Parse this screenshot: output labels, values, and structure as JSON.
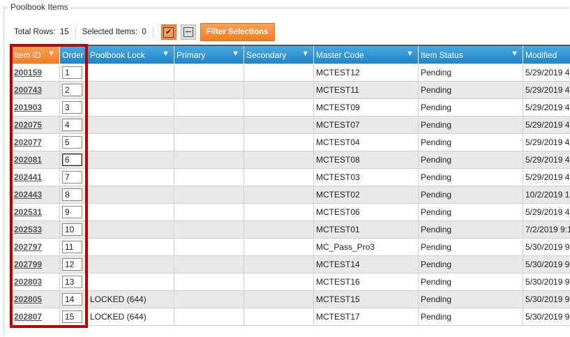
{
  "group_title": "Poolbook Items",
  "toolbar": {
    "total_rows_label": "Total Rows:",
    "total_rows": "15",
    "selected_label": "Selected Items:",
    "selected": "0",
    "check_all_icon": "checkbox-checked-icon",
    "deselect_icon": "minus-box-icon",
    "filter_label": "Filter Selections"
  },
  "accent": "#f47c20",
  "header_color": "#1f85c8",
  "highlight_color": "#c00000",
  "columns": [
    "Item ID",
    "Order",
    "Poolbook Lock",
    "Primary",
    "Secondary",
    "Master Code",
    "Item Status",
    "Modified"
  ],
  "rows": [
    {
      "id": "200159",
      "order": "1",
      "lock": "",
      "primary": "",
      "secondary": "",
      "code": "MCTEST12",
      "status": "Pending",
      "modified": "5/29/2019 4"
    },
    {
      "id": "200743",
      "order": "2",
      "lock": "",
      "primary": "",
      "secondary": "",
      "code": "MCTEST11",
      "status": "Pending",
      "modified": "5/29/2019 4"
    },
    {
      "id": "201903",
      "order": "3",
      "lock": "",
      "primary": "",
      "secondary": "",
      "code": "MCTEST09",
      "status": "Pending",
      "modified": "5/29/2019 4"
    },
    {
      "id": "202075",
      "order": "4",
      "lock": "",
      "primary": "",
      "secondary": "",
      "code": "MCTEST07",
      "status": "Pending",
      "modified": "5/29/2019 4"
    },
    {
      "id": "202077",
      "order": "5",
      "lock": "",
      "primary": "",
      "secondary": "",
      "code": "MCTEST04",
      "status": "Pending",
      "modified": "5/29/2019 4"
    },
    {
      "id": "202081",
      "order": "6",
      "lock": "",
      "primary": "",
      "secondary": "",
      "code": "MCTEST08",
      "status": "Pending",
      "modified": "5/29/2019 4"
    },
    {
      "id": "202441",
      "order": "7",
      "lock": "",
      "primary": "",
      "secondary": "",
      "code": "MCTEST03",
      "status": "Pending",
      "modified": "5/29/2019 4"
    },
    {
      "id": "202443",
      "order": "8",
      "lock": "",
      "primary": "",
      "secondary": "",
      "code": "MCTEST02",
      "status": "Pending",
      "modified": "10/2/2019 1"
    },
    {
      "id": "202531",
      "order": "9",
      "lock": "",
      "primary": "",
      "secondary": "",
      "code": "MCTEST06",
      "status": "Pending",
      "modified": "5/29/2019 4"
    },
    {
      "id": "202533",
      "order": "10",
      "lock": "",
      "primary": "",
      "secondary": "",
      "code": "MCTEST01",
      "status": "Pending",
      "modified": "7/2/2019 9:1"
    },
    {
      "id": "202797",
      "order": "11",
      "lock": "",
      "primary": "",
      "secondary": "",
      "code": "MC_Pass_Pro3",
      "status": "Pending",
      "modified": "5/30/2019 9"
    },
    {
      "id": "202799",
      "order": "12",
      "lock": "",
      "primary": "",
      "secondary": "",
      "code": "MCTEST14",
      "status": "Pending",
      "modified": "5/30/2019 9"
    },
    {
      "id": "202803",
      "order": "13",
      "lock": "",
      "primary": "",
      "secondary": "",
      "code": "MCTEST16",
      "status": "Pending",
      "modified": "5/30/2019 9"
    },
    {
      "id": "202805",
      "order": "14",
      "lock": "LOCKED (644)",
      "primary": "",
      "secondary": "",
      "code": "MCTEST15",
      "status": "Pending",
      "modified": "5/30/2019 9"
    },
    {
      "id": "202807",
      "order": "15",
      "lock": "LOCKED (644)",
      "primary": "",
      "secondary": "",
      "code": "MCTEST17",
      "status": "Pending",
      "modified": "5/30/2019 9"
    }
  ]
}
